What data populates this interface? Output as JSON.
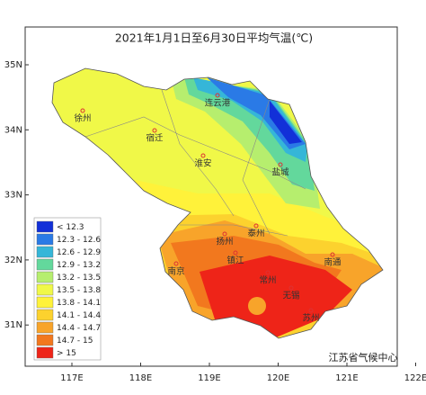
{
  "title": "2021年1月1日至6月30日平均气温(℃)",
  "x_ticks": [
    "117E",
    "118E",
    "119E",
    "120E",
    "121E",
    "122E"
  ],
  "y_ticks": [
    "35N",
    "34N",
    "33N",
    "32N",
    "31N"
  ],
  "legend": [
    {
      "label": "< 12.3",
      "color": "#1230d8"
    },
    {
      "label": "12.3 - 12.6",
      "color": "#2a7ae6"
    },
    {
      "label": "12.6 - 12.9",
      "color": "#35b6d8"
    },
    {
      "label": "12.9 - 13.2",
      "color": "#63d89c"
    },
    {
      "label": "13.2 - 13.5",
      "color": "#b6ee6e"
    },
    {
      "label": "13.5 - 13.8",
      "color": "#f0f848"
    },
    {
      "label": "13.8 - 14.1",
      "color": "#fff23a"
    },
    {
      "label": "14.1 - 14.4",
      "color": "#fcd22e"
    },
    {
      "label": "14.4 - 14.7",
      "color": "#f8a42a"
    },
    {
      "label": "14.7 - 15",
      "color": "#f2781e"
    },
    {
      "label": "> 15",
      "color": "#ee2418"
    }
  ],
  "cities": [
    "徐州",
    "宿迁",
    "连云港",
    "淮安",
    "盐城",
    "扬州",
    "泰州",
    "南通",
    "镇江",
    "南京",
    "常州",
    "无锡",
    "苏州"
  ],
  "source": "江苏省气候中心"
}
